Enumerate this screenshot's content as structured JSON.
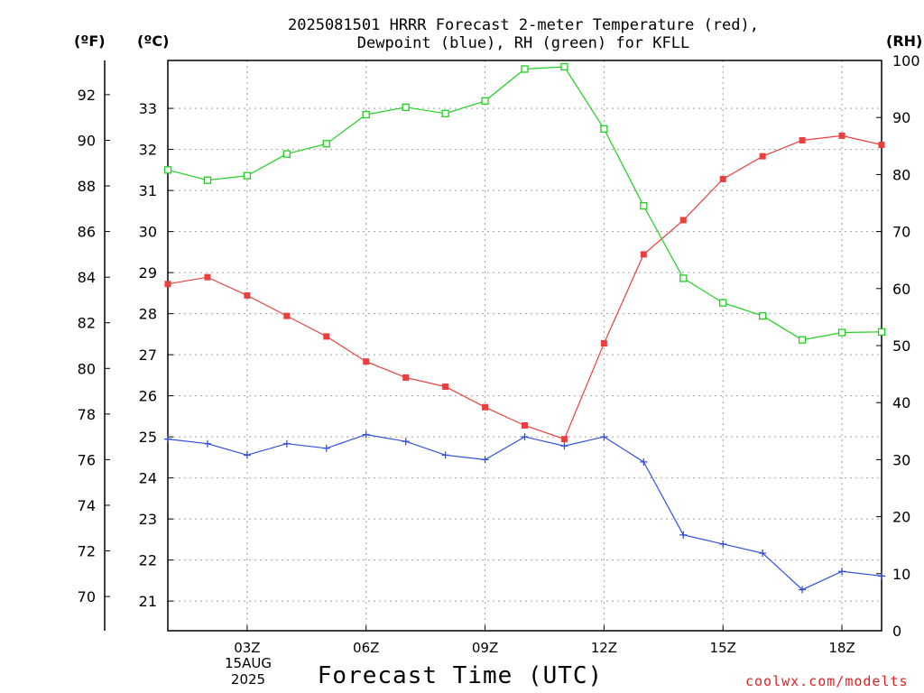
{
  "title_line1": "2025081501 HRRR Forecast 2-meter Temperature (red),",
  "title_line2": "Dewpoint (blue), RH (green) for KFLL",
  "unit_f": "(ºF)",
  "unit_c": "(ºC)",
  "unit_rh": "(RH)",
  "date_day": "15AUG",
  "date_year": "2025",
  "xlabel": "Forecast Time (UTC)",
  "credit": "coolwx.com/modelts",
  "colors": {
    "temperature": "#e84040",
    "dewpoint": "#3050e0",
    "rh": "#20d020",
    "grid": "#a0a0a0"
  },
  "chart_data": {
    "type": "line",
    "x": [
      1,
      2,
      3,
      4,
      5,
      6,
      7,
      8,
      9,
      10,
      11,
      12,
      13,
      14,
      15,
      16,
      17,
      18,
      19
    ],
    "x_ticks": [
      3,
      6,
      9,
      12,
      15,
      18
    ],
    "x_tick_labels": [
      "03Z",
      "06Z",
      "09Z",
      "12Z",
      "15Z",
      "18Z"
    ],
    "xlim": [
      1,
      19
    ],
    "xlabel": "Forecast Time (UTC)",
    "y_left_f": {
      "label": "(ºF)",
      "ticks": [
        70,
        72,
        74,
        76,
        78,
        80,
        82,
        84,
        86,
        88,
        90,
        92
      ],
      "lim": [
        68.5,
        93.5
      ]
    },
    "y_left_c": {
      "label": "(ºC)",
      "ticks": [
        21,
        22,
        23,
        24,
        25,
        26,
        27,
        28,
        29,
        30,
        31,
        32,
        33
      ]
    },
    "y_right": {
      "label": "(RH)",
      "ticks": [
        0,
        10,
        20,
        30,
        40,
        50,
        60,
        70,
        80,
        90,
        100
      ],
      "lim": [
        0,
        100
      ]
    },
    "grid": true,
    "series": [
      {
        "key": "temperature",
        "unit": "F",
        "marker": "filled-square",
        "values": [
          83.7,
          84.0,
          83.2,
          82.3,
          81.4,
          80.3,
          79.6,
          79.2,
          78.3,
          77.5,
          76.9,
          81.1,
          85.0,
          86.5,
          88.3,
          89.3,
          90.0,
          90.2,
          89.8
        ]
      },
      {
        "key": "dewpoint",
        "unit": "F",
        "marker": "plus",
        "values": [
          76.9,
          76.7,
          76.2,
          76.7,
          76.5,
          77.1,
          76.8,
          76.2,
          76.0,
          77.0,
          76.6,
          77.0,
          75.9,
          72.7,
          72.3,
          71.9,
          70.3,
          71.1,
          70.9
        ]
      },
      {
        "key": "rh",
        "unit": "%",
        "marker": "open-square",
        "values": [
          80.8,
          79.0,
          79.8,
          83.6,
          85.4,
          90.5,
          91.8,
          90.7,
          92.9,
          98.5,
          98.9,
          88.0,
          74.5,
          61.8,
          57.5,
          55.2,
          51.0,
          52.3,
          52.4
        ]
      }
    ]
  }
}
